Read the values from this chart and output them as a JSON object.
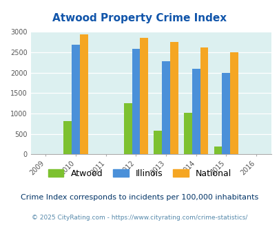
{
  "title": "Atwood Property Crime Index",
  "years": [
    2009,
    2010,
    2011,
    2012,
    2013,
    2014,
    2015,
    2016
  ],
  "data_years": [
    2010,
    2012,
    2013,
    2014,
    2015
  ],
  "atwood": [
    820,
    1250,
    580,
    1020,
    190
  ],
  "illinois": [
    2680,
    2590,
    2280,
    2100,
    2000
  ],
  "national": [
    2930,
    2860,
    2750,
    2620,
    2500
  ],
  "color_atwood": "#7DC130",
  "color_illinois": "#4A90D9",
  "color_national": "#F5A623",
  "ylim": [
    0,
    3000
  ],
  "yticks": [
    0,
    500,
    1000,
    1500,
    2000,
    2500,
    3000
  ],
  "background_color": "#DCF0F0",
  "title_color": "#1155AA",
  "note_text": "Crime Index corresponds to incidents per 100,000 inhabitants",
  "copyright_text": "© 2025 CityRating.com - https://www.cityrating.com/crime-statistics/",
  "note_color": "#003366",
  "copyright_color": "#5588AA",
  "bar_width": 0.27,
  "title_fontsize": 11,
  "tick_fontsize": 7,
  "legend_fontsize": 9,
  "note_fontsize": 8,
  "copyright_fontsize": 6.5,
  "xlim_left": 2008.5,
  "xlim_right": 2016.5
}
